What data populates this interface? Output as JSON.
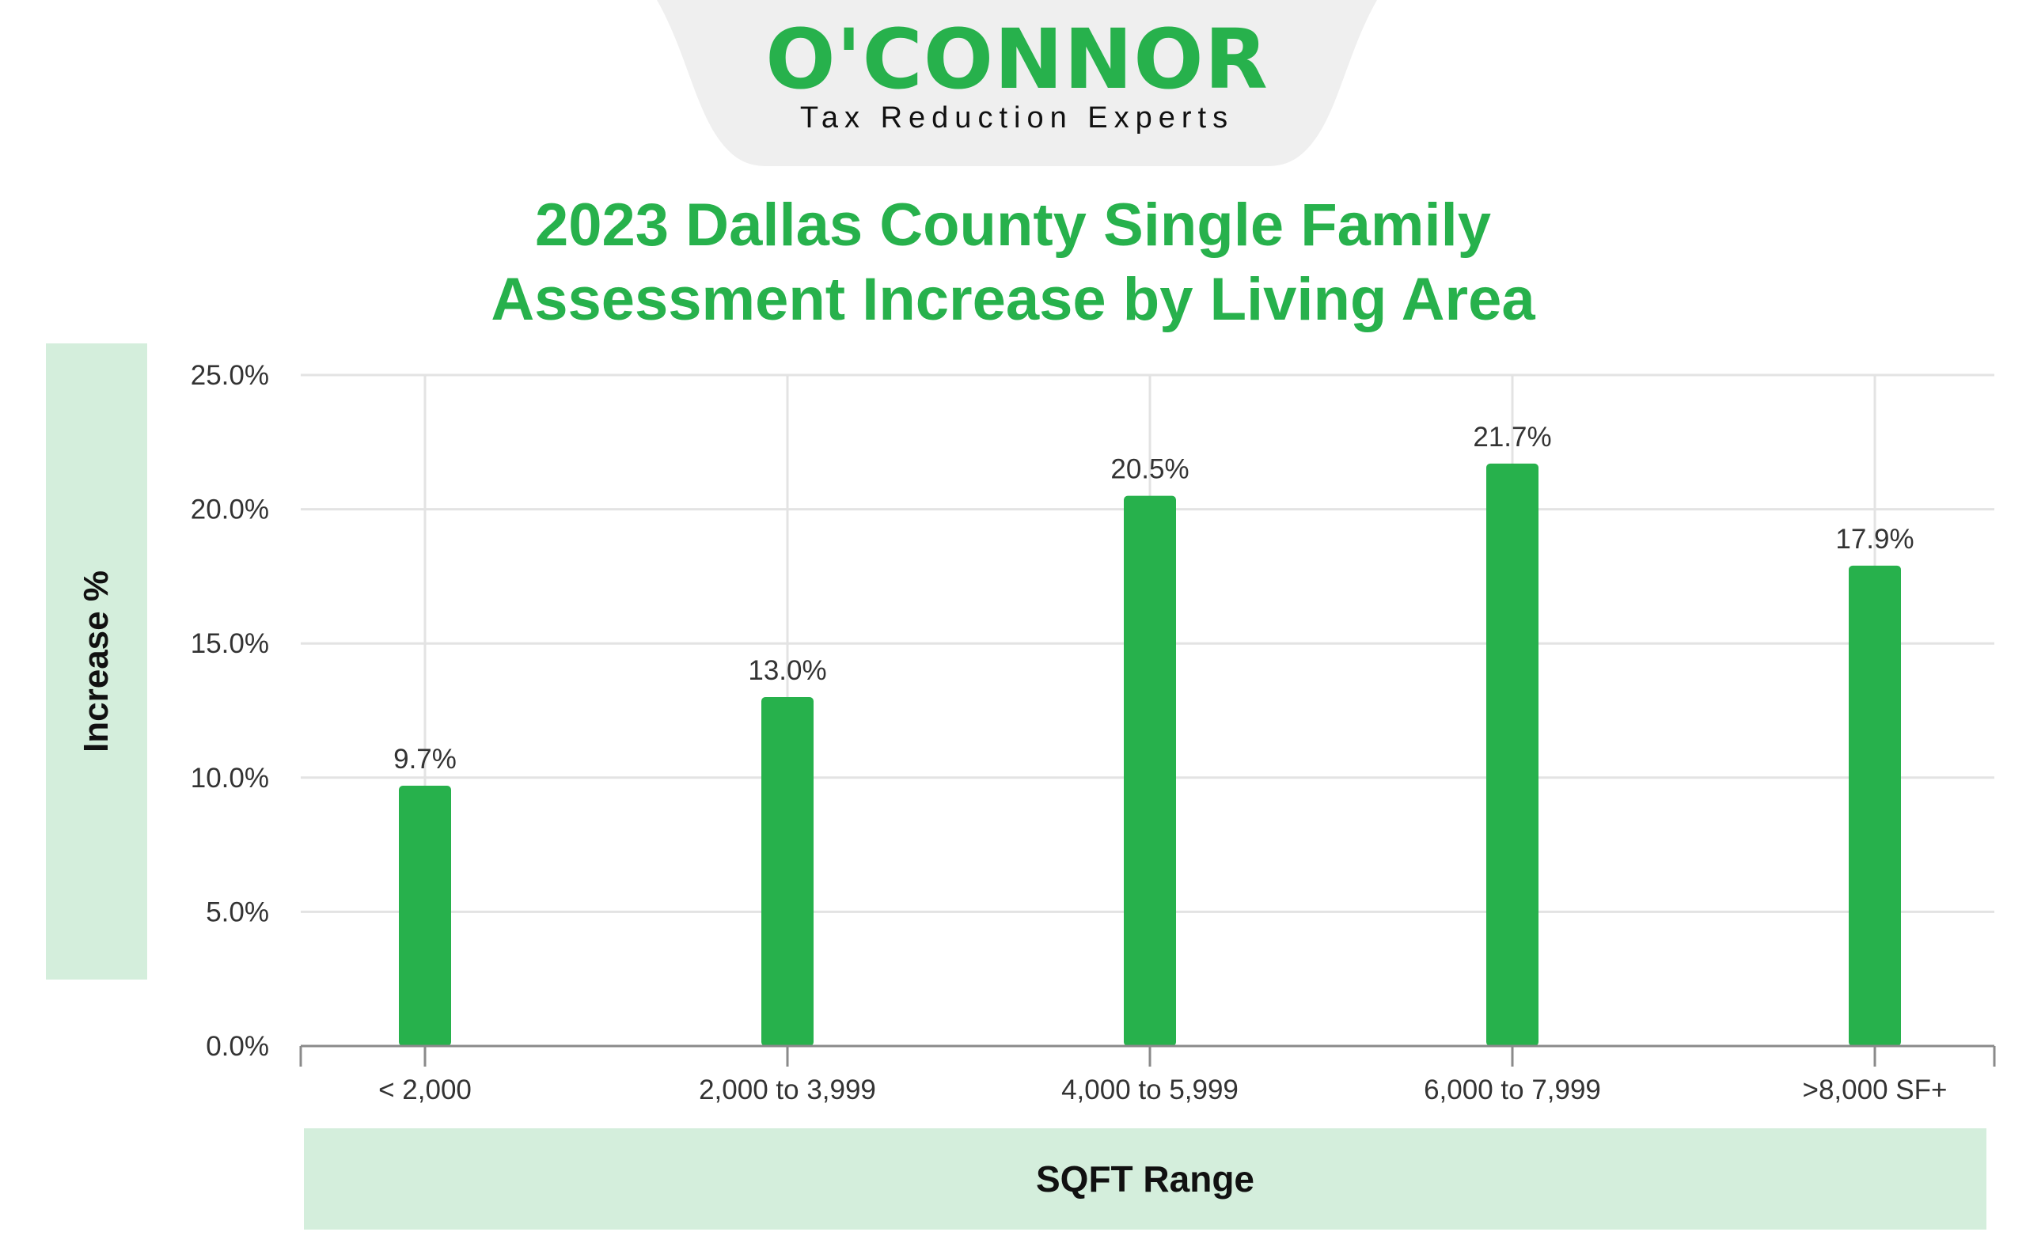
{
  "brand": {
    "name": "O'CONNOR",
    "tagline": "Tax Reduction Experts",
    "colors": {
      "green": "#27b14c",
      "tab_bg": "#efefef",
      "label_box_bg": "#d4eedc"
    }
  },
  "chart_data": {
    "type": "bar",
    "title": [
      "2023 Dallas County Single Family",
      "Assessment Increase by Living Area"
    ],
    "xlabel": "SQFT Range",
    "ylabel": "Increase %",
    "categories": [
      "< 2,000",
      "2,000 to 3,999",
      "4,000 to 5,999",
      "6,000 to 7,999",
      ">8,000 SF+"
    ],
    "values": [
      9.7,
      13.0,
      20.5,
      21.7,
      17.9
    ],
    "value_labels": [
      "9.7%",
      "13.0%",
      "20.5%",
      "21.7%",
      "17.9%"
    ],
    "ylim": [
      0,
      25
    ],
    "yticks": [
      0,
      5,
      10,
      15,
      20,
      25
    ],
    "ytick_labels": [
      "0.0%",
      "5.0%",
      "10.0%",
      "15.0%",
      "20.0%",
      "25.0%"
    ],
    "grid": true,
    "bar_color": "#27b14c"
  }
}
